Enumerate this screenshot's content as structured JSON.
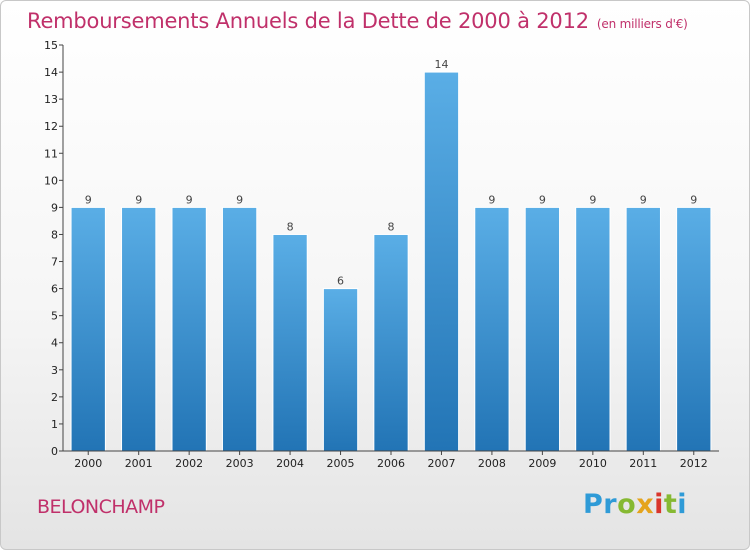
{
  "header": {
    "title": "Remboursements Annuels de la Dette de 2000 à 2012",
    "unit": "(en milliers d'€)"
  },
  "footer": {
    "place": "BELONCHAMP",
    "logo_letters": [
      {
        "char": "P",
        "color": "#2f9bd7"
      },
      {
        "char": "r",
        "color": "#2f9bd7"
      },
      {
        "char": "o",
        "color": "#86b932"
      },
      {
        "char": "x",
        "color": "#e5a41d"
      },
      {
        "char": "i",
        "color": "#d9352b"
      },
      {
        "char": "t",
        "color": "#86b932"
      },
      {
        "char": "i",
        "color": "#2f9bd7"
      }
    ]
  },
  "chart_data": {
    "type": "bar",
    "title": "Remboursements Annuels de la Dette de 2000 à 2012",
    "subtitle": "(en milliers d'€)",
    "categories": [
      "2000",
      "2001",
      "2002",
      "2003",
      "2004",
      "2005",
      "2006",
      "2007",
      "2008",
      "2009",
      "2010",
      "2011",
      "2012"
    ],
    "values": [
      9,
      9,
      9,
      9,
      8,
      6,
      8,
      14,
      9,
      9,
      9,
      9,
      9
    ],
    "value_labels": [
      "9",
      "9",
      "9",
      "9",
      "8",
      "6",
      "8",
      "14",
      "9",
      "9",
      "9",
      "9",
      "9"
    ],
    "y_ticks": [
      0,
      1,
      2,
      3,
      4,
      5,
      6,
      7,
      8,
      9,
      10,
      11,
      12,
      13,
      14,
      15
    ],
    "ylim": [
      0,
      15
    ],
    "xlabel": "",
    "ylabel": "",
    "grid": false,
    "bar_color_top": "#5aaee6",
    "bar_color_bottom": "#2274b5"
  }
}
